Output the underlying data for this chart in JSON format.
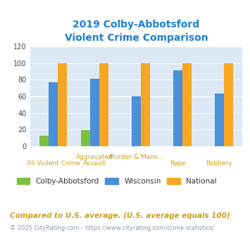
{
  "title_line1": "2019 Colby-Abbotsford",
  "title_line2": "Violent Crime Comparison",
  "categories": [
    "All Violent Crime",
    "Aggravated Assault",
    "Murder & Mans...",
    "Rape",
    "Robbery"
  ],
  "colby": [
    13,
    19,
    0,
    0,
    0
  ],
  "wisconsin": [
    77,
    81,
    60,
    91,
    63
  ],
  "national": [
    100,
    100,
    100,
    100,
    100
  ],
  "colby_color": "#7bc142",
  "wisconsin_color": "#4a90d9",
  "national_color": "#f5a623",
  "ylim": [
    0,
    120
  ],
  "yticks": [
    0,
    20,
    40,
    60,
    80,
    100,
    120
  ],
  "footnote1": "Compared to U.S. average. (U.S. average equals 100)",
  "footnote2": "© 2025 CityRating.com - https://www.cityrating.com/crime-statistics/",
  "fig_bg_color": "#ffffff",
  "plot_bg_color": "#dce9f5",
  "title_color": "#1a7fd4",
  "axis_label_color": "#c8a020",
  "footnote1_color": "#c8a020",
  "footnote2_color": "#8899aa",
  "grid_color": "#ffffff",
  "bar_width": 0.22
}
